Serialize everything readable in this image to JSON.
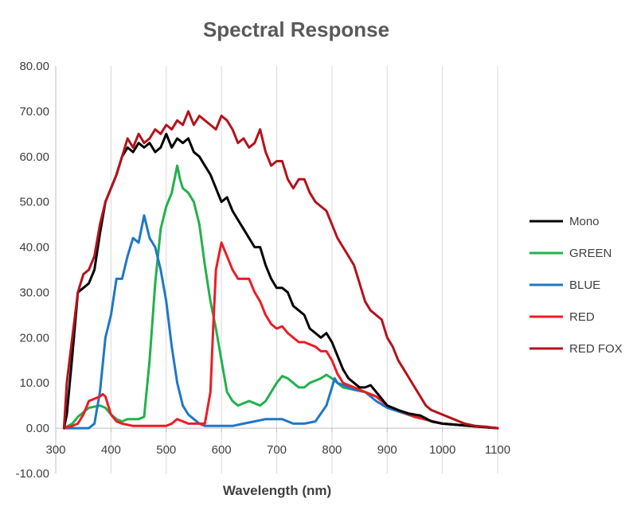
{
  "chart_data": {
    "type": "line",
    "title": "Spectral Response",
    "xlabel": "Wavelength (nm)",
    "ylabel": "",
    "xlim": [
      300,
      1100
    ],
    "ylim": [
      -10,
      80
    ],
    "x_ticks": [
      300,
      400,
      500,
      600,
      700,
      800,
      900,
      1000,
      1100
    ],
    "x_tick_labels": [
      "300",
      "400",
      "500",
      "600",
      "700",
      "800",
      "900",
      "1000",
      "1100"
    ],
    "y_ticks": [
      -10,
      0,
      10,
      20,
      30,
      40,
      50,
      60,
      70,
      80
    ],
    "y_tick_labels": [
      "-10.00",
      "0.00",
      "10.00",
      "20.00",
      "30.00",
      "40.00",
      "50.00",
      "60.00",
      "70.00",
      "80.00"
    ],
    "grid": "vertical",
    "legend_position": "right",
    "series": [
      {
        "name": "Mono",
        "color": "#000000",
        "points": [
          [
            315,
            0
          ],
          [
            320,
            3
          ],
          [
            330,
            16
          ],
          [
            340,
            30
          ],
          [
            350,
            31
          ],
          [
            360,
            32
          ],
          [
            370,
            35
          ],
          [
            380,
            43
          ],
          [
            390,
            50
          ],
          [
            400,
            53
          ],
          [
            410,
            56
          ],
          [
            420,
            60
          ],
          [
            430,
            62
          ],
          [
            440,
            61
          ],
          [
            450,
            63
          ],
          [
            460,
            62
          ],
          [
            470,
            63
          ],
          [
            480,
            61
          ],
          [
            490,
            62
          ],
          [
            500,
            65
          ],
          [
            510,
            62
          ],
          [
            520,
            64
          ],
          [
            530,
            63
          ],
          [
            540,
            64
          ],
          [
            550,
            61
          ],
          [
            560,
            60
          ],
          [
            570,
            58
          ],
          [
            580,
            56
          ],
          [
            590,
            53
          ],
          [
            600,
            50
          ],
          [
            610,
            51
          ],
          [
            620,
            48
          ],
          [
            630,
            46
          ],
          [
            640,
            44
          ],
          [
            650,
            42
          ],
          [
            660,
            40
          ],
          [
            670,
            40
          ],
          [
            680,
            36
          ],
          [
            690,
            33
          ],
          [
            700,
            31
          ],
          [
            710,
            31
          ],
          [
            720,
            30
          ],
          [
            730,
            27
          ],
          [
            740,
            26
          ],
          [
            750,
            25
          ],
          [
            760,
            22
          ],
          [
            770,
            21
          ],
          [
            780,
            20
          ],
          [
            790,
            21
          ],
          [
            800,
            19
          ],
          [
            810,
            16
          ],
          [
            820,
            13
          ],
          [
            830,
            11
          ],
          [
            840,
            10
          ],
          [
            850,
            9
          ],
          [
            860,
            9
          ],
          [
            870,
            9.5
          ],
          [
            880,
            8
          ],
          [
            890,
            6.5
          ],
          [
            900,
            5
          ],
          [
            920,
            4
          ],
          [
            940,
            3.2
          ],
          [
            960,
            2.8
          ],
          [
            980,
            1.5
          ],
          [
            1000,
            1
          ],
          [
            1050,
            0.5
          ],
          [
            1100,
            0
          ]
        ]
      },
      {
        "name": "GREEN",
        "color": "#22b14c",
        "points": [
          [
            315,
            0
          ],
          [
            330,
            1
          ],
          [
            340,
            2.5
          ],
          [
            360,
            4.5
          ],
          [
            380,
            5
          ],
          [
            390,
            4.5
          ],
          [
            400,
            3
          ],
          [
            410,
            2
          ],
          [
            420,
            1.5
          ],
          [
            430,
            2
          ],
          [
            440,
            2
          ],
          [
            450,
            2
          ],
          [
            460,
            2.5
          ],
          [
            470,
            15
          ],
          [
            480,
            32
          ],
          [
            490,
            44
          ],
          [
            500,
            49
          ],
          [
            510,
            52
          ],
          [
            520,
            58
          ],
          [
            525,
            55
          ],
          [
            530,
            53
          ],
          [
            540,
            52
          ],
          [
            550,
            50
          ],
          [
            560,
            45
          ],
          [
            570,
            36
          ],
          [
            580,
            28
          ],
          [
            590,
            22
          ],
          [
            600,
            15
          ],
          [
            610,
            8
          ],
          [
            620,
            6
          ],
          [
            630,
            5
          ],
          [
            640,
            5.5
          ],
          [
            650,
            6
          ],
          [
            660,
            5.5
          ],
          [
            670,
            5
          ],
          [
            680,
            6
          ],
          [
            690,
            8
          ],
          [
            700,
            10
          ],
          [
            710,
            11.5
          ],
          [
            720,
            11
          ],
          [
            730,
            10
          ],
          [
            740,
            9
          ],
          [
            750,
            9
          ],
          [
            760,
            10
          ],
          [
            770,
            10.5
          ],
          [
            780,
            11
          ],
          [
            790,
            11.8
          ],
          [
            800,
            11
          ],
          [
            810,
            10
          ],
          [
            820,
            9
          ],
          [
            840,
            8.5
          ],
          [
            860,
            8
          ],
          [
            880,
            7
          ],
          [
            900,
            5
          ],
          [
            920,
            4
          ],
          [
            940,
            3
          ],
          [
            960,
            2.5
          ],
          [
            980,
            1.5
          ],
          [
            1000,
            1
          ],
          [
            1050,
            0.5
          ],
          [
            1100,
            0
          ]
        ]
      },
      {
        "name": "BLUE",
        "color": "#1f77c8",
        "points": [
          [
            315,
            0
          ],
          [
            360,
            0
          ],
          [
            370,
            1
          ],
          [
            380,
            8
          ],
          [
            390,
            20
          ],
          [
            400,
            25
          ],
          [
            410,
            33
          ],
          [
            420,
            33
          ],
          [
            430,
            38
          ],
          [
            440,
            42
          ],
          [
            450,
            41
          ],
          [
            460,
            47
          ],
          [
            470,
            42
          ],
          [
            480,
            40
          ],
          [
            490,
            35
          ],
          [
            500,
            28
          ],
          [
            510,
            18
          ],
          [
            520,
            10
          ],
          [
            530,
            5
          ],
          [
            540,
            3
          ],
          [
            550,
            2
          ],
          [
            560,
            1
          ],
          [
            570,
            0.5
          ],
          [
            600,
            0.5
          ],
          [
            620,
            0.5
          ],
          [
            640,
            1
          ],
          [
            660,
            1.5
          ],
          [
            680,
            2
          ],
          [
            700,
            2
          ],
          [
            710,
            2
          ],
          [
            720,
            1.5
          ],
          [
            730,
            1
          ],
          [
            750,
            1
          ],
          [
            770,
            1.5
          ],
          [
            790,
            5
          ],
          [
            800,
            9
          ],
          [
            805,
            11
          ],
          [
            810,
            10
          ],
          [
            820,
            9.5
          ],
          [
            840,
            8.5
          ],
          [
            860,
            8
          ],
          [
            880,
            6
          ],
          [
            900,
            4.5
          ],
          [
            950,
            2.5
          ],
          [
            1000,
            1
          ],
          [
            1100,
            0
          ]
        ]
      },
      {
        "name": "RED",
        "color": "#ed1c24",
        "points": [
          [
            315,
            0
          ],
          [
            330,
            0.5
          ],
          [
            340,
            1
          ],
          [
            350,
            3
          ],
          [
            360,
            6
          ],
          [
            370,
            6.5
          ],
          [
            380,
            7
          ],
          [
            385,
            7.5
          ],
          [
            390,
            7
          ],
          [
            400,
            3
          ],
          [
            410,
            1.5
          ],
          [
            420,
            1
          ],
          [
            440,
            0.5
          ],
          [
            460,
            0.5
          ],
          [
            480,
            0.5
          ],
          [
            500,
            0.5
          ],
          [
            510,
            1
          ],
          [
            520,
            2
          ],
          [
            530,
            1.5
          ],
          [
            540,
            1
          ],
          [
            550,
            1
          ],
          [
            570,
            1
          ],
          [
            580,
            8
          ],
          [
            585,
            22
          ],
          [
            590,
            35
          ],
          [
            600,
            41
          ],
          [
            610,
            38
          ],
          [
            620,
            35
          ],
          [
            630,
            33
          ],
          [
            640,
            33
          ],
          [
            650,
            33
          ],
          [
            660,
            30
          ],
          [
            670,
            28
          ],
          [
            680,
            25
          ],
          [
            690,
            23
          ],
          [
            700,
            22
          ],
          [
            710,
            22.5
          ],
          [
            720,
            21
          ],
          [
            730,
            20
          ],
          [
            740,
            19
          ],
          [
            750,
            19
          ],
          [
            760,
            18.5
          ],
          [
            770,
            18
          ],
          [
            780,
            17
          ],
          [
            790,
            17
          ],
          [
            800,
            15
          ],
          [
            810,
            12
          ],
          [
            820,
            10
          ],
          [
            840,
            9
          ],
          [
            860,
            8
          ],
          [
            880,
            7
          ],
          [
            900,
            5
          ],
          [
            950,
            2.5
          ],
          [
            1000,
            1
          ],
          [
            1100,
            0
          ]
        ]
      },
      {
        "name": "RED FOX",
        "color": "#b5121b",
        "points": [
          [
            315,
            0
          ],
          [
            320,
            10
          ],
          [
            330,
            20
          ],
          [
            340,
            30
          ],
          [
            350,
            34
          ],
          [
            360,
            35
          ],
          [
            370,
            38
          ],
          [
            380,
            45
          ],
          [
            390,
            50
          ],
          [
            400,
            53
          ],
          [
            410,
            56
          ],
          [
            420,
            60
          ],
          [
            430,
            64
          ],
          [
            440,
            62
          ],
          [
            450,
            65
          ],
          [
            460,
            63
          ],
          [
            470,
            64
          ],
          [
            480,
            66
          ],
          [
            490,
            65
          ],
          [
            500,
            67
          ],
          [
            510,
            66
          ],
          [
            520,
            68
          ],
          [
            530,
            67
          ],
          [
            540,
            70
          ],
          [
            550,
            67
          ],
          [
            560,
            69
          ],
          [
            570,
            68
          ],
          [
            580,
            67
          ],
          [
            590,
            66
          ],
          [
            600,
            69
          ],
          [
            610,
            68
          ],
          [
            620,
            66
          ],
          [
            630,
            63
          ],
          [
            640,
            64
          ],
          [
            650,
            62
          ],
          [
            660,
            63
          ],
          [
            670,
            66
          ],
          [
            680,
            61
          ],
          [
            690,
            58
          ],
          [
            700,
            59
          ],
          [
            710,
            59
          ],
          [
            720,
            55
          ],
          [
            730,
            53
          ],
          [
            740,
            55
          ],
          [
            750,
            55
          ],
          [
            760,
            52
          ],
          [
            770,
            50
          ],
          [
            780,
            49
          ],
          [
            790,
            48
          ],
          [
            800,
            45
          ],
          [
            810,
            42
          ],
          [
            820,
            40
          ],
          [
            830,
            38
          ],
          [
            840,
            36
          ],
          [
            850,
            32
          ],
          [
            860,
            28
          ],
          [
            870,
            26
          ],
          [
            880,
            25
          ],
          [
            890,
            24
          ],
          [
            900,
            20
          ],
          [
            910,
            18
          ],
          [
            920,
            15
          ],
          [
            930,
            13
          ],
          [
            940,
            11
          ],
          [
            950,
            9
          ],
          [
            960,
            7
          ],
          [
            970,
            5
          ],
          [
            980,
            4
          ],
          [
            990,
            3.5
          ],
          [
            1000,
            3
          ],
          [
            1020,
            2
          ],
          [
            1040,
            1
          ],
          [
            1060,
            0.5
          ],
          [
            1080,
            0.3
          ],
          [
            1100,
            0
          ]
        ]
      }
    ]
  }
}
